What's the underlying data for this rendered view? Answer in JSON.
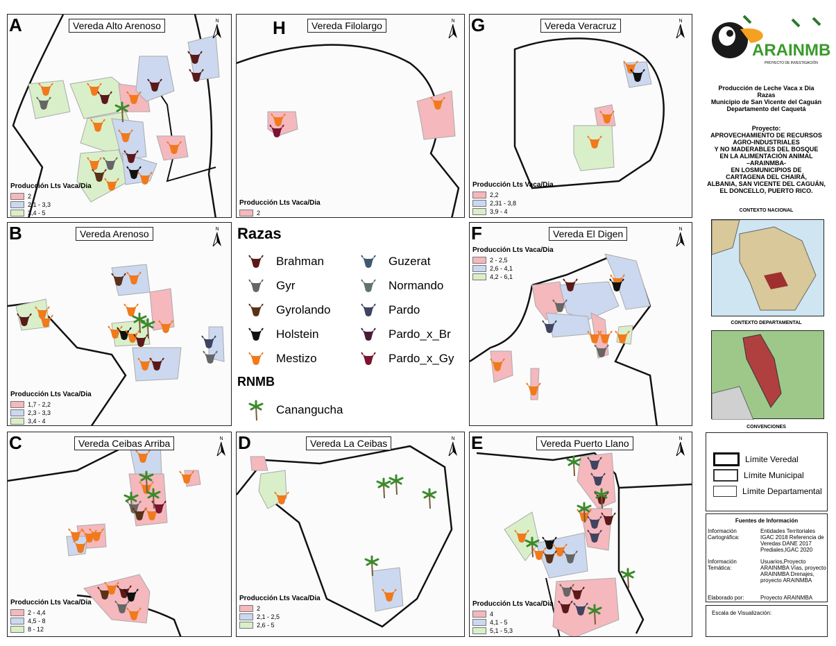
{
  "panels": [
    {
      "id": "A",
      "title": "Vereda Alto Arenoso",
      "legend": {
        "title": "Producción Lts Vaca/Dia",
        "classes": [
          "2",
          "2,1 - 3,3",
          "3,4 - 5"
        ]
      }
    },
    {
      "id": "H",
      "title": "Vereda Filolargo",
      "legend": {
        "title": "Producción Lts Vaca/Dia",
        "classes": [
          "2"
        ]
      }
    },
    {
      "id": "G",
      "title": "Vereda Veracruz",
      "legend": {
        "title": "Producción Lts Vaca/Dia",
        "classes": [
          "2,2",
          "2,31 - 3,8",
          "3,9 - 4"
        ]
      }
    },
    {
      "id": "B",
      "title": "Vereda Arenoso",
      "legend": {
        "title": "Producción Lts Vaca/Dia",
        "classes": [
          "1,7 - 2,2",
          "2,3 - 3,3",
          "3,4 - 4"
        ]
      }
    },
    {
      "id": "F",
      "title": "Vereda El Digen",
      "legend": {
        "title": "Producción Lts Vaca/Dia",
        "classes": [
          "2 - 2,5",
          "2,6 - 4,1",
          "4,2 - 6,1"
        ]
      }
    },
    {
      "id": "C",
      "title": "Vereda Ceibas Arriba",
      "legend": {
        "title": "Producción Lts Vaca/Dia",
        "classes": [
          "2 - 4,4",
          "4,5 - 8",
          "8 - 12"
        ]
      }
    },
    {
      "id": "D",
      "title": "Vereda La Ceibas",
      "legend": {
        "title": "Producción Lts Vaca/Dia",
        "classes": [
          "2",
          "2,1 - 2,5",
          "2,6 - 5"
        ]
      }
    },
    {
      "id": "E",
      "title": "Vereda Puerto Llano",
      "legend": {
        "title": "Producción Lts Vaca/Dia",
        "classes": [
          "4",
          "4,1 - 5",
          "5,1 - 5,3"
        ]
      }
    }
  ],
  "north_label": "N",
  "legend_colors": [
    "#f4b8bd",
    "#ccd8ef",
    "#d9efc9"
  ],
  "razas": {
    "title": "Razas",
    "breeds": [
      {
        "name": "Brahman",
        "color": "#5a1a1a"
      },
      {
        "name": "Gyr",
        "color": "#666666"
      },
      {
        "name": "Gyrolando",
        "color": "#5a3218"
      },
      {
        "name": "Holstein",
        "color": "#111111"
      },
      {
        "name": "Mestizo",
        "color": "#f07a1c"
      },
      {
        "name": "Guzerat",
        "color": "#3f5a70"
      },
      {
        "name": "Normando",
        "color": "#5d7470"
      },
      {
        "name": "Pardo",
        "color": "#3f4460"
      },
      {
        "name": "Pardo_x_Br",
        "color": "#4a1c3a"
      },
      {
        "name": "Pardo_x_Gy",
        "color": "#7a1430"
      }
    ],
    "rnmb_title": "RNMB",
    "rnmb_item": "Canangucha"
  },
  "side": {
    "logo_name": "ARAINMBA",
    "logo_sub": "PROYECTO DE INVESTIGACIÓN",
    "map_title": [
      "Producción de Leche Vaca x Dia",
      "Razas",
      "Municipio de San Vicente del Caguán",
      "Departamento del Caquetá"
    ],
    "project": [
      "Proyecto:",
      "APROVECHAMIENTO DE RECURSOS",
      "AGRO-INDUSTRIALES",
      "Y NO MADERABLES DEL BOSQUE",
      "EN LA ALIMENTACIÓN ANIMAL",
      "–ARAINMBA-",
      "EN LOSMUNICIPIOS DE",
      "CARTAGENA DEL CHAIRÁ,",
      "ALBANIA, SAN VICENTE DEL CAGUÁN,",
      "EL DONCELLO, PUERTO RICO."
    ],
    "contexto_nacional": "CONTEXTO NACIONAL",
    "contexto_departamental": "CONTEXTO DEPARTAMENTAL",
    "convenciones": "CONVENCIONES",
    "limites": [
      "Límite Veredal",
      "Límite Municipal",
      "Límite Departamental"
    ],
    "fuentes_title": "Fuentes de Información",
    "fuentes": [
      {
        "label": "Información Cartográfica:",
        "value": "Entidades Territoriales IGAC 2018 Referencia de Veredas DANE 2017 Prediales,IGAC 2020"
      },
      {
        "label": "Información Temática:",
        "value": "Usuarios,Proyecto ARAINMBA Vías, proyecto ARAINMBA Drenajes, proyecto ARAINMBA"
      },
      {
        "label": "Elaborado por:",
        "value": "Proyecto ARAINMBA"
      }
    ],
    "escala": "Escala de Visualización:"
  }
}
